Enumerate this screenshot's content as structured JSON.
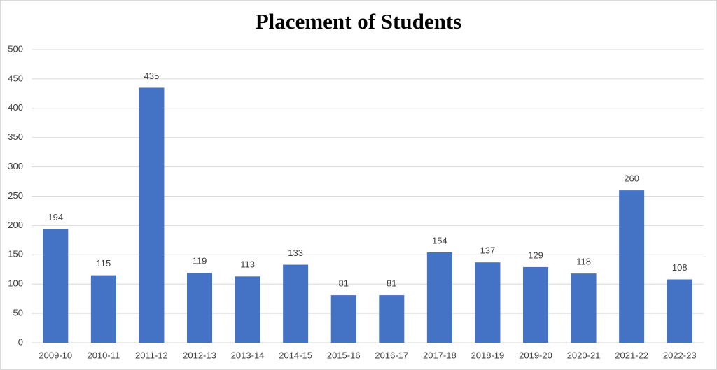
{
  "chart_data": {
    "type": "bar",
    "title": "Placement of Students",
    "categories": [
      "2009-10",
      "2010-11",
      "2011-12",
      "2012-13",
      "2013-14",
      "2014-15",
      "2015-16",
      "2016-17",
      "2017-18",
      "2018-19",
      "2019-20",
      "2020-21",
      "2021-22",
      "2022-23"
    ],
    "values": [
      194,
      115,
      435,
      119,
      113,
      133,
      81,
      81,
      154,
      137,
      129,
      118,
      260,
      108
    ],
    "color": "#4472c4",
    "ylim": [
      0,
      500
    ],
    "yticks": [
      0,
      50,
      100,
      150,
      200,
      250,
      300,
      350,
      400,
      450,
      500
    ],
    "grid": true
  }
}
